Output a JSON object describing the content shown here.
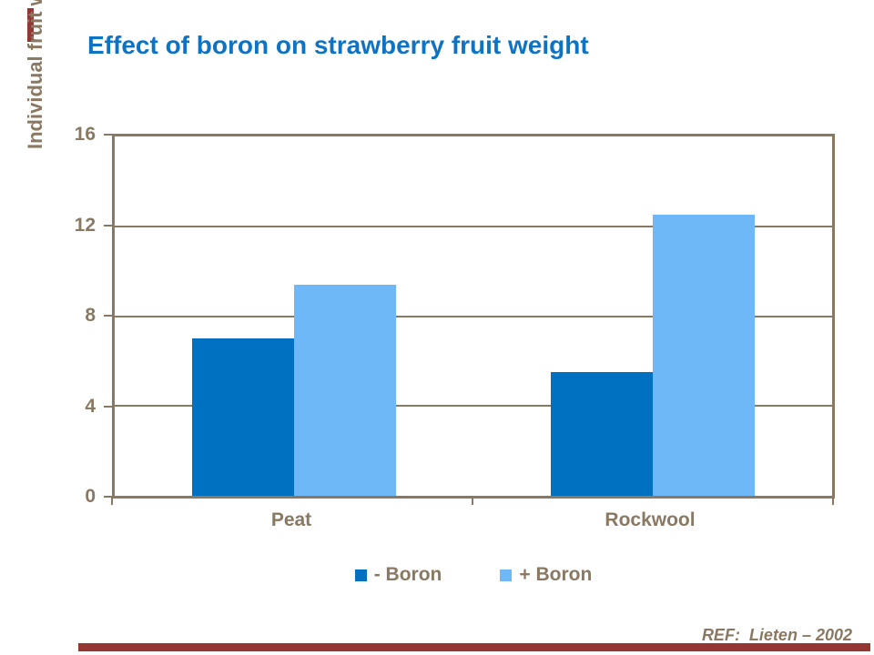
{
  "slide": {
    "title": "Effect of boron on strawberry fruit weight",
    "ref_text": "REF:  Lieten – 2002"
  },
  "colors": {
    "title_blue": "#0E73C4",
    "axis_brown": "#8A7962",
    "grid_brown": "#8A7962",
    "series_minus_boron": "#0070C0",
    "series_plus_boron": "#6FB8F8",
    "accent_maroon": "#943634",
    "plot_background": "#FFFFFF"
  },
  "chart_data": {
    "type": "bar",
    "title": "Effect of boron on strawberry fruit weight",
    "categories": [
      "Peat",
      "Rockwool"
    ],
    "series": [
      {
        "name": "- Boron",
        "color": "#0070C0",
        "values": [
          7.0,
          5.5
        ]
      },
      {
        "name": "+ Boron",
        "color": "#6FB8F8",
        "values": [
          9.4,
          12.5
        ]
      }
    ],
    "xlabel": "",
    "ylabel": "Individual fruit weight (g)",
    "ylim": [
      0,
      16
    ],
    "yticks": [
      0,
      4,
      8,
      12,
      16
    ],
    "grid": "horizontal",
    "legend_position": "bottom"
  }
}
